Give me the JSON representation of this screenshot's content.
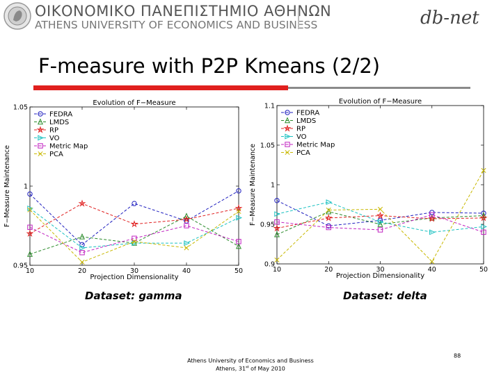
{
  "header": {
    "university_greek": "ΟΙΚΟΝΟΜΙΚΟ ΠΑΝΕΠΙΣΤΗΜΙΟ ΑΘΗΝΩΝ",
    "university_english": "ATHENS UNIVERSITY OF ECONOMICS AND BUSINESS",
    "brand_logo_text": "db-net"
  },
  "slide_title": "F-measure with P2P Kmeans (2/2)",
  "captions": {
    "gamma": "Dataset: gamma",
    "delta": "Dataset: delta"
  },
  "footer": {
    "line1": "Athens University of Economics and Business",
    "line2_prefix": "Athens, 31",
    "line2_sup": "st",
    "line2_suffix": " of May 2010",
    "slide_number": "88"
  },
  "colors": {
    "accent_red": "#e0201e",
    "rule_grey": "#8a8a8a"
  },
  "chart_data": [
    {
      "type": "line",
      "title": "Evolution of F−Measure",
      "xlabel": "Projection Dimensionality",
      "ylabel": "F−Measure Maintenance",
      "x": [
        10,
        20,
        30,
        40,
        50
      ],
      "xticks": [
        "10",
        "20",
        "30",
        "40",
        "50"
      ],
      "xlim": [
        10,
        50
      ],
      "ylim": [
        0.95,
        1.05
      ],
      "yticks": [
        {
          "v": 0.95,
          "label": "0.95"
        },
        {
          "v": 1.0,
          "label": "1"
        },
        {
          "v": 1.05,
          "label": "1.05"
        }
      ],
      "legend_position": "top-left",
      "series": [
        {
          "name": "FEDRA",
          "color": "#1f1fbf",
          "marker": "circle",
          "values": [
            0.995,
            0.963,
            0.989,
            0.978,
            0.997
          ]
        },
        {
          "name": "LMDS",
          "color": "#2a8a2a",
          "marker": "triangle-up",
          "values": [
            0.957,
            0.968,
            0.964,
            0.981,
            0.962
          ]
        },
        {
          "name": "RP",
          "color": "#e02020",
          "marker": "star",
          "values": [
            0.97,
            0.989,
            0.976,
            0.979,
            0.986
          ]
        },
        {
          "name": "VO",
          "color": "#18c0c0",
          "marker": "triangle-right",
          "values": [
            0.986,
            0.961,
            0.964,
            0.964,
            0.98
          ]
        },
        {
          "name": "Metric Map",
          "color": "#c020c0",
          "marker": "square",
          "values": [
            0.974,
            0.958,
            0.967,
            0.975,
            0.965
          ]
        },
        {
          "name": "PCA",
          "color": "#c8b800",
          "marker": "x",
          "values": [
            0.985,
            0.952,
            0.965,
            0.961,
            0.984
          ]
        }
      ]
    },
    {
      "type": "line",
      "title": "Evolution of F−Measure",
      "xlabel": "Projection Dimensionality",
      "ylabel": "F−Measure Maintenance",
      "x": [
        10,
        20,
        30,
        40,
        50
      ],
      "xticks": [
        "10",
        "20",
        "30",
        "40",
        "50"
      ],
      "xlim": [
        10,
        50
      ],
      "ylim": [
        0.9,
        1.1
      ],
      "yticks": [
        {
          "v": 0.9,
          "label": "0.9"
        },
        {
          "v": 0.95,
          "label": "0.95"
        },
        {
          "v": 1.0,
          "label": "1"
        },
        {
          "v": 1.05,
          "label": "1.05"
        },
        {
          "v": 1.1,
          "label": "1.1"
        }
      ],
      "legend_position": "top-left",
      "series": [
        {
          "name": "FEDRA",
          "color": "#1f1fbf",
          "marker": "circle",
          "values": [
            0.98,
            0.948,
            0.955,
            0.965,
            0.964
          ]
        },
        {
          "name": "LMDS",
          "color": "#2a8a2a",
          "marker": "triangle-up",
          "values": [
            0.937,
            0.966,
            0.95,
            0.958,
            0.961
          ]
        },
        {
          "name": "RP",
          "color": "#e02020",
          "marker": "star",
          "values": [
            0.945,
            0.958,
            0.961,
            0.957,
            0.958
          ]
        },
        {
          "name": "VO",
          "color": "#18c0c0",
          "marker": "triangle-right",
          "values": [
            0.963,
            0.978,
            0.953,
            0.94,
            0.947
          ]
        },
        {
          "name": "Metric Map",
          "color": "#c020c0",
          "marker": "square",
          "values": [
            0.953,
            0.946,
            0.943,
            0.962,
            0.94
          ]
        },
        {
          "name": "PCA",
          "color": "#c8b800",
          "marker": "x",
          "values": [
            0.905,
            0.968,
            0.969,
            0.903,
            1.018
          ]
        }
      ]
    }
  ]
}
